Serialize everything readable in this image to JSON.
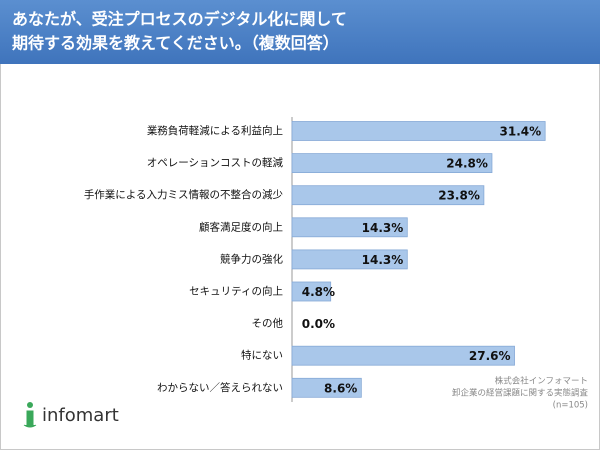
{
  "chart_data": {
    "type": "barh",
    "title": [
      "あなたが、受注プロセスのデジタル化に関して",
      "期待する効果を教えてください。（複数回答）"
    ],
    "categories": [
      "業務負荷軽減による利益向上",
      "オペレーションコストの軽減",
      "手作業による入力ミス情報の不整合の減少",
      "顧客満足度の向上",
      "競争力の強化",
      "セキュリティの向上",
      "その他",
      "特にない",
      "わからない／答えられない"
    ],
    "values": [
      31.4,
      24.8,
      23.8,
      14.3,
      14.3,
      4.8,
      0.0,
      27.6,
      8.6
    ],
    "value_labels": [
      "31.4%",
      "24.8%",
      "23.8%",
      "14.3%",
      "14.3%",
      "4.8%",
      "0.0%",
      "27.6%",
      "8.6%"
    ],
    "color": "#a9c7ea",
    "xlim": [
      0,
      32
    ],
    "source": [
      "株式会社インフォマート",
      "卸企業の経営課題に関する実態調査",
      "(n=105)"
    ],
    "logo_text": "infomart"
  }
}
